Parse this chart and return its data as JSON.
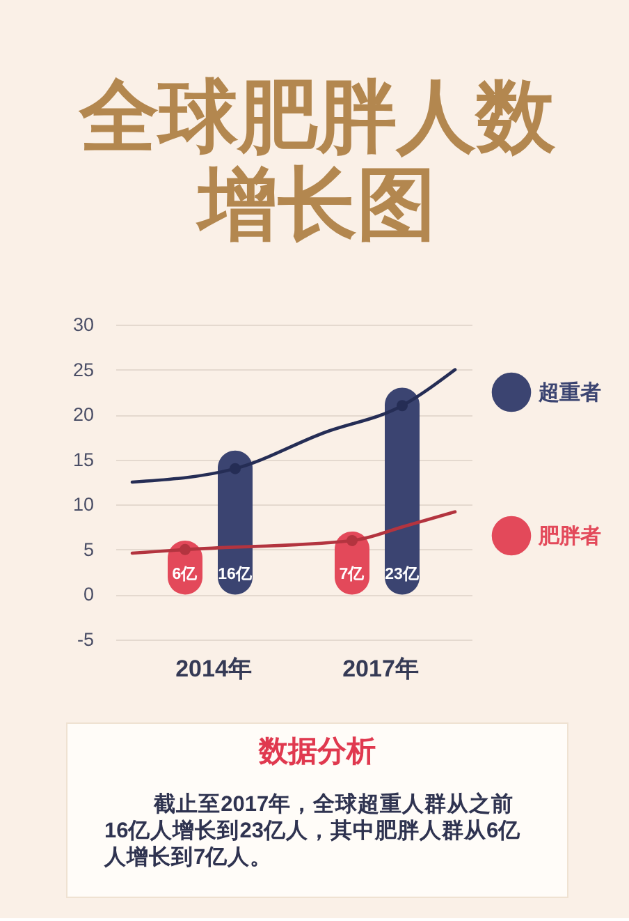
{
  "chart_data": [
    {
      "type": "bar",
      "title": "全球肥胖人数增长图",
      "xlim": [
        2012.25,
        2018.65
      ],
      "xticks": [
        {
          "value": 2014,
          "label": "2014年"
        },
        {
          "value": 2017,
          "label": "2017年"
        }
      ],
      "ylim": [
        -5,
        30
      ],
      "yticks": [
        -5,
        0,
        5,
        10,
        15,
        20,
        25,
        30
      ],
      "grid": "y",
      "legend": "right",
      "series": [
        {
          "name": "超重者",
          "type": "bar",
          "color": "#3b4471",
          "x": [
            2014.4,
            2017.4
          ],
          "values": [
            16,
            23
          ],
          "value_labels": [
            "16亿",
            "23亿"
          ]
        },
        {
          "name": "肥胖者",
          "type": "bar",
          "color": "#e3495a",
          "x": [
            2013.5,
            2016.5
          ],
          "values": [
            6,
            7
          ],
          "value_labels": [
            "6亿",
            "7亿"
          ]
        },
        {
          "type": "line",
          "color": "#252d55",
          "x": [
            2012.55,
            2014.4,
            2016.0,
            2017.4,
            2018.35
          ],
          "values": [
            12.5,
            14,
            18,
            21,
            25
          ]
        },
        {
          "type": "line",
          "color": "#b3343f",
          "x": [
            2012.55,
            2013.5,
            2016.5,
            2017.45,
            2018.35
          ],
          "values": [
            4.6,
            5,
            6,
            7.6,
            9.2
          ]
        },
        {
          "type": "scatter",
          "color": "#252d55",
          "marker": "circle",
          "x": [
            2014.4,
            2017.4
          ],
          "values": [
            14,
            21
          ]
        },
        {
          "type": "scatter",
          "color": "#b3343f",
          "marker": "circle",
          "x": [
            2013.5,
            2016.5
          ],
          "values": [
            5,
            6
          ]
        }
      ]
    },
    {
      "type": "other",
      "title": "数据分析",
      "annotations": [
        "截止至2017年，全球超重人群从之前16亿人增长到23亿人，其中肥胖人群从6亿人增长到7亿人。"
      ]
    }
  ]
}
